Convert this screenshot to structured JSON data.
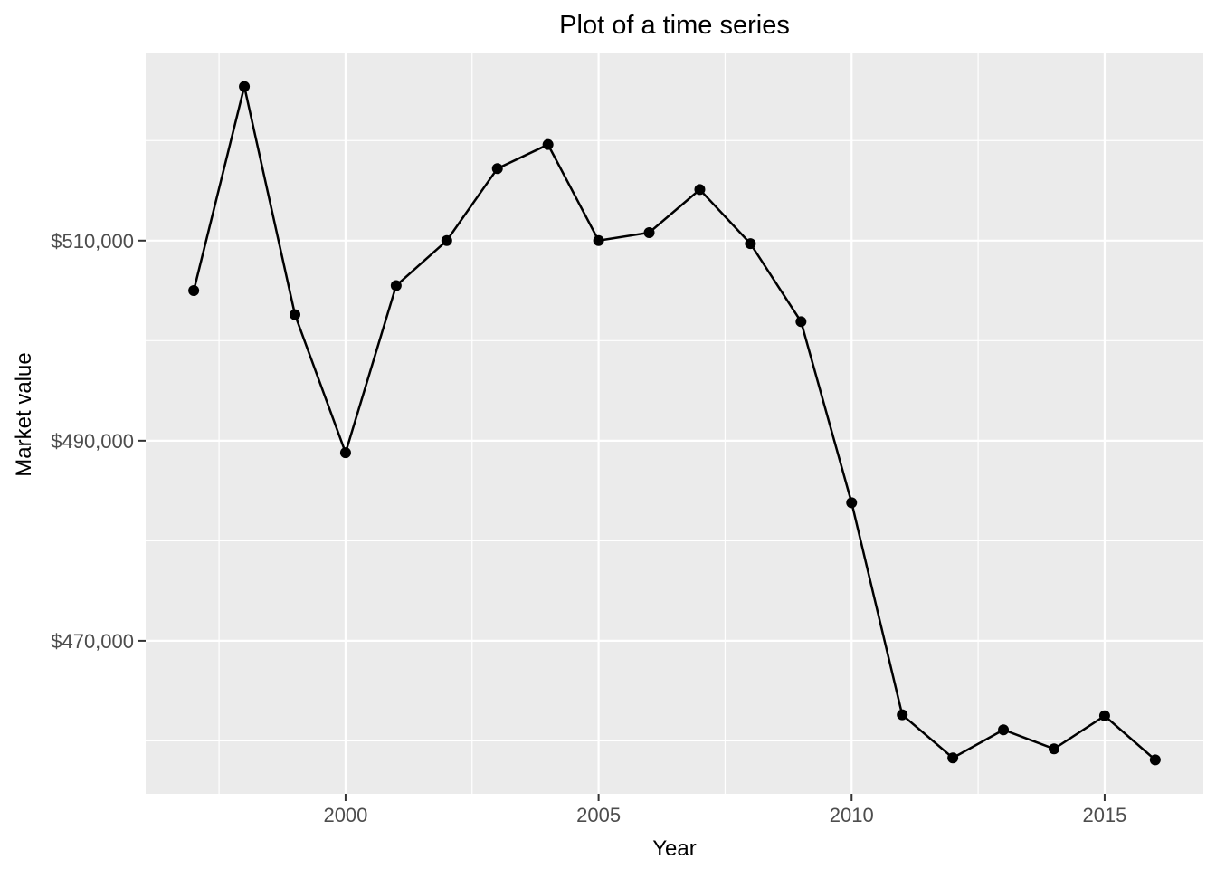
{
  "chart_data": {
    "type": "line",
    "title": "Plot of a time series",
    "xlabel": "Year",
    "ylabel": "Market value",
    "x": [
      1997,
      1998,
      1999,
      2000,
      2001,
      2002,
      2003,
      2004,
      2005,
      2006,
      2007,
      2008,
      2009,
      2010,
      2011,
      2012,
      2013,
      2014,
      2015,
      2016
    ],
    "y": [
      505000,
      525400,
      502600,
      488800,
      505500,
      510000,
      517200,
      519600,
      510000,
      510800,
      515100,
      509700,
      501900,
      483800,
      462600,
      458300,
      461100,
      459200,
      462500,
      458100
    ],
    "xlim": [
      1996.05,
      2016.95
    ],
    "ylim": [
      454700,
      528800
    ],
    "x_major_ticks": [
      2000,
      2005,
      2010,
      2015
    ],
    "x_tick_labels": [
      "2000",
      "2005",
      "2010",
      "2015"
    ],
    "x_minor_ticks": [
      1997.5,
      2002.5,
      2007.5,
      2012.5
    ],
    "y_major_ticks": [
      470000,
      490000,
      510000
    ],
    "y_tick_labels": [
      "$470,000",
      "$490,000",
      "$510,000"
    ],
    "y_minor_ticks": [
      460000,
      480000,
      500000,
      520000
    ],
    "grid": true,
    "legend": "none",
    "style": {
      "panel_bg": "#EBEBEB",
      "grid_color": "#FFFFFF",
      "line_color": "#000000",
      "point_color": "#000000",
      "axis_text_color": "#4D4D4D",
      "tick_color": "#333333",
      "title_color": "#000000"
    }
  }
}
